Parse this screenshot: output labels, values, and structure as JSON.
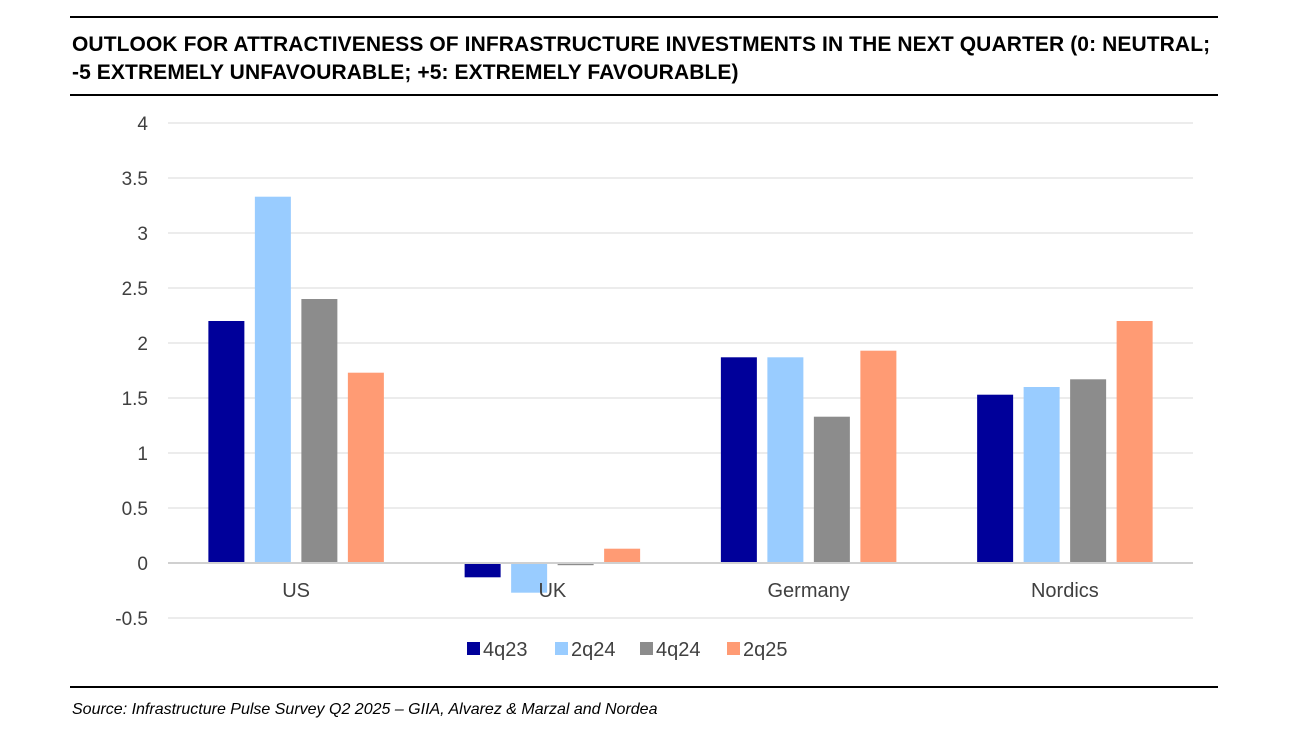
{
  "title": "OUTLOOK FOR ATTRACTIVENESS OF INFRASTRUCTURE INVESTMENTS IN THE NEXT QUARTER (0: NEUTRAL; -5 EXTREMELY UNFAVOURABLE; +5: EXTREMELY FAVOURABLE)",
  "source": "Source: Infrastructure Pulse Survey Q2 2025 – GIIA, Alvarez & Marzal and Nordea",
  "chart_data": {
    "type": "bar",
    "title": "OUTLOOK FOR ATTRACTIVENESS OF INFRASTRUCTURE INVESTMENTS IN THE NEXT QUARTER (0: NEUTRAL; -5 EXTREMELY UNFAVOURABLE; +5: EXTREMELY FAVOURABLE)",
    "categories": [
      "US",
      "UK",
      "Germany",
      "Nordics"
    ],
    "series": [
      {
        "name": "4q23",
        "color": "#00009A",
        "values": [
          2.2,
          -0.13,
          1.87,
          1.53
        ]
      },
      {
        "name": "2q24",
        "color": "#99CCFF",
        "values": [
          3.33,
          -0.27,
          1.87,
          1.6
        ]
      },
      {
        "name": "4q24",
        "color": "#8C8C8C",
        "values": [
          2.4,
          -0.02,
          1.33,
          1.67
        ]
      },
      {
        "name": "2q25",
        "color": "#FF9B74",
        "values": [
          1.73,
          0.13,
          1.93,
          2.2
        ]
      }
    ],
    "yticks": [
      "4",
      "3.5",
      "3",
      "2.5",
      "2",
      "1.5",
      "1",
      "0.5",
      "0",
      "-0.5"
    ],
    "ylim": [
      -0.5,
      4
    ],
    "grid": true,
    "legend_position": "bottom"
  }
}
